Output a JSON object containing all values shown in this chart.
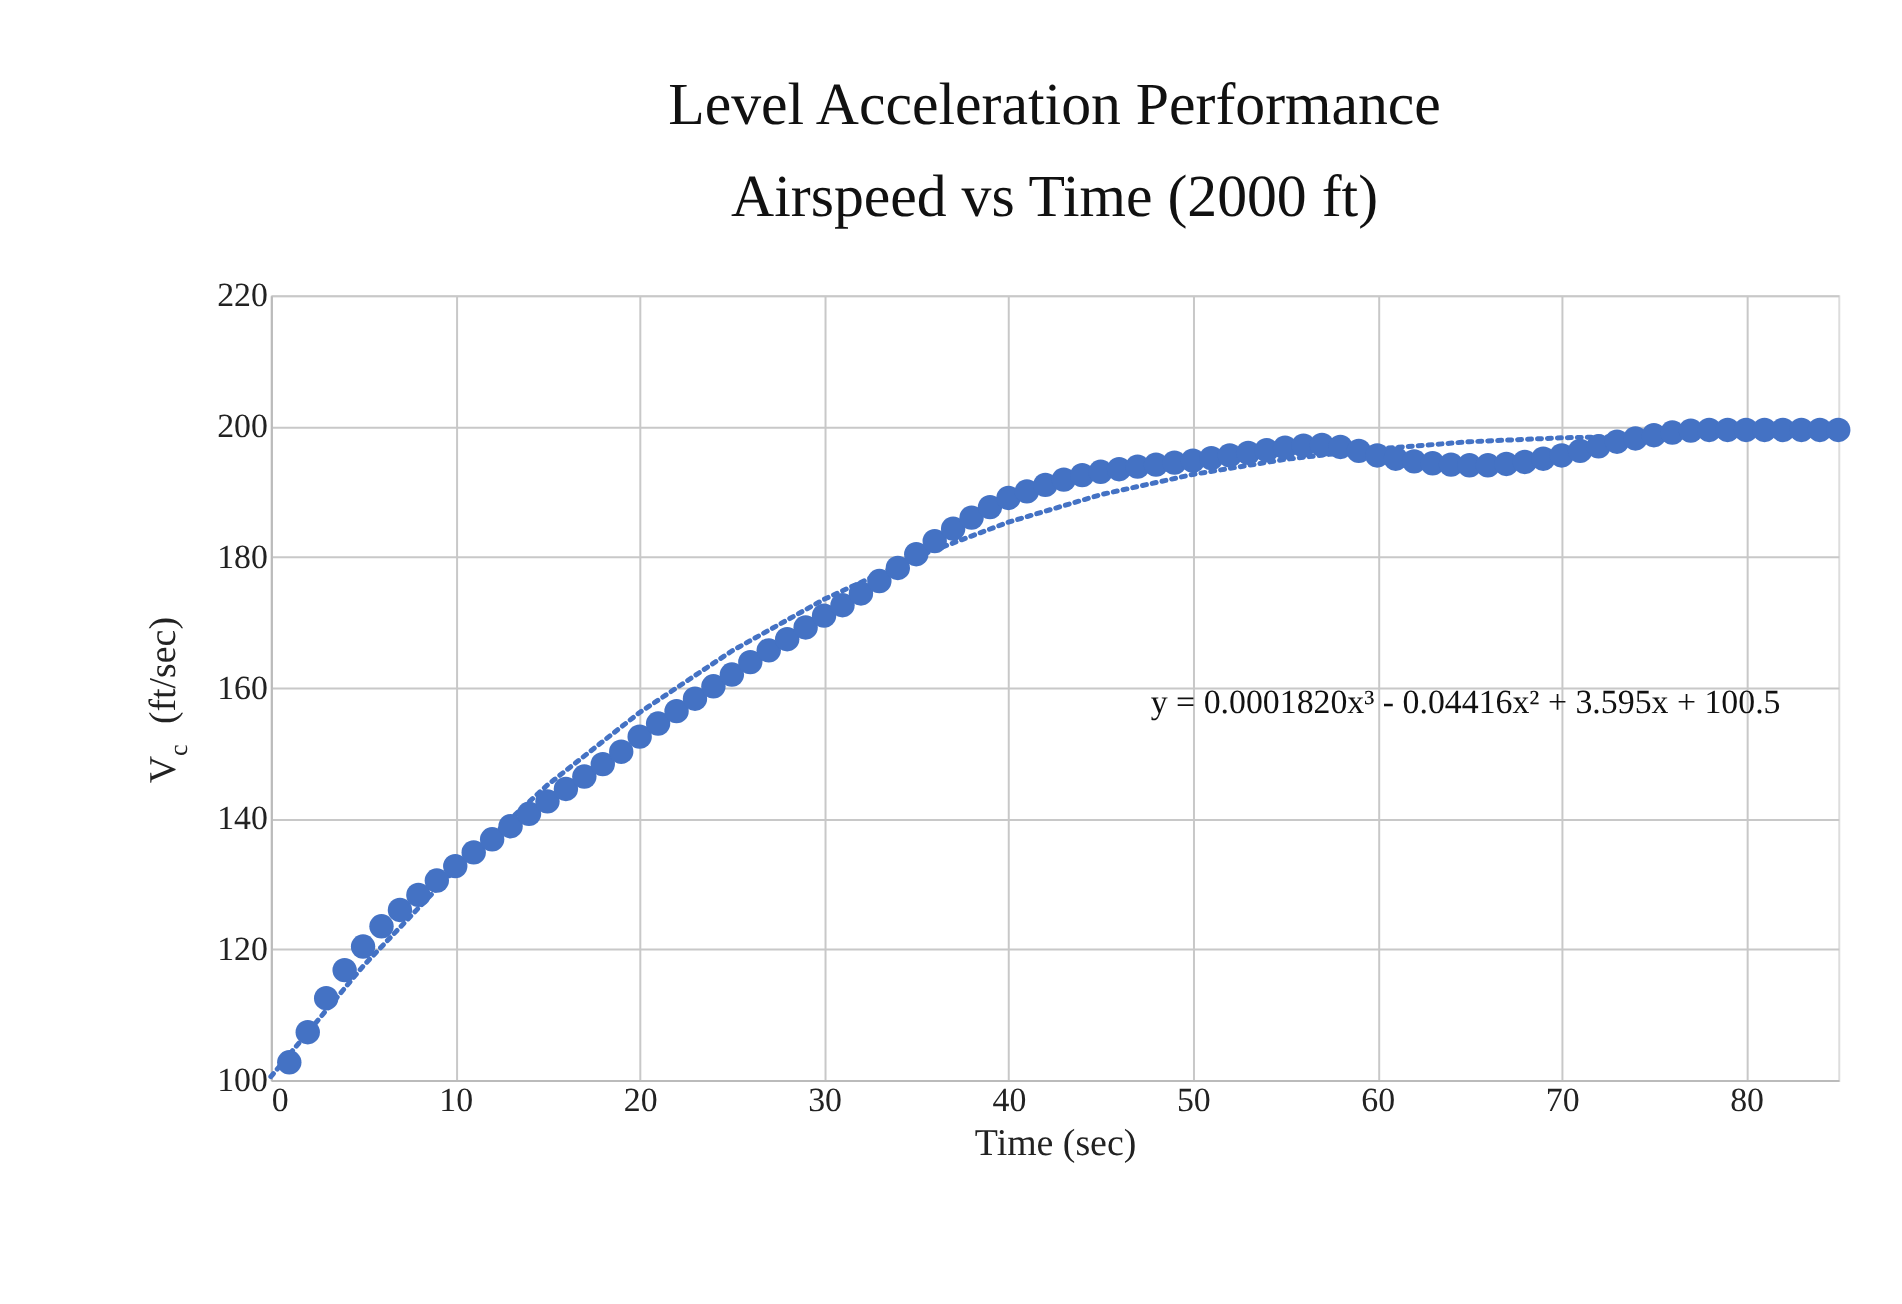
{
  "chart_data": {
    "type": "scatter",
    "title": [
      "Level Acceleration Performance",
      "Airspeed vs Time (2000 ft)"
    ],
    "xlabel": "Time (sec)",
    "ylabel": "V$_{c}$ (ft/sec)",
    "xlim": [
      0,
      85
    ],
    "xticks": [
      0,
      10,
      20,
      30,
      40,
      50,
      60,
      70,
      80
    ],
    "ylim": [
      100,
      220
    ],
    "yticks": [
      100,
      120,
      140,
      160,
      180,
      200,
      220
    ],
    "grid": true,
    "marker": "circle",
    "annotations": [
      "y = 0.0001820x³ - 0.04416x² + 3.595x + 100.5"
    ],
    "series": [
      {
        "color": "#4472c4",
        "x": [
          1,
          2,
          3,
          4,
          5,
          6,
          7,
          8,
          9,
          10,
          11,
          12,
          13,
          14,
          15,
          16,
          17,
          18,
          19,
          20,
          21,
          22,
          23,
          24,
          25,
          26,
          27,
          28,
          29,
          30,
          31,
          32,
          33,
          34,
          35,
          36,
          37,
          38,
          39,
          40,
          41,
          42,
          43,
          44,
          45,
          46,
          47,
          48,
          49,
          50,
          51,
          52,
          53,
          54,
          55,
          56,
          57,
          58,
          59,
          60,
          61,
          62,
          63,
          64,
          65,
          66,
          67,
          68,
          69,
          70,
          71,
          72,
          73,
          74,
          75,
          76,
          77,
          78,
          79,
          80,
          81,
          82,
          83,
          84,
          85
        ],
        "values": [
          102.7,
          107.3,
          112.5,
          116.8,
          120.4,
          123.5,
          126,
          128.3,
          130.5,
          132.7,
          134.8,
          136.8,
          138.8,
          140.7,
          142.6,
          144.5,
          146.4,
          148.3,
          150.2,
          152.5,
          154.5,
          156.4,
          158.3,
          160.2,
          162,
          163.9,
          165.7,
          167.4,
          169.2,
          171,
          172.6,
          174.4,
          176.3,
          178.3,
          180.4,
          182.4,
          184.3,
          186,
          187.6,
          189,
          190,
          191,
          191.8,
          192.5,
          193,
          193.4,
          193.8,
          194.1,
          194.4,
          194.7,
          195.1,
          195.5,
          195.9,
          196.3,
          196.7,
          197,
          197.1,
          196.8,
          196.2,
          195.5,
          195,
          194.6,
          194.3,
          194.1,
          194,
          194,
          194.2,
          194.5,
          195,
          195.5,
          196.2,
          196.9,
          197.6,
          198.1,
          198.6,
          199,
          199.3,
          199.4,
          199.4,
          199.4,
          199.4,
          199.4,
          199.4,
          199.4,
          199.4
        ]
      },
      {
        "type": "line",
        "color": "#4472c4",
        "line_style": "dotted",
        "marker": "none",
        "x": [
          0,
          5,
          10,
          15,
          20,
          25,
          30,
          35,
          40,
          45,
          50,
          55,
          60,
          65,
          70,
          75,
          80,
          85
        ],
        "values": [
          100.5,
          117.4,
          132.2,
          145.1,
          156.2,
          165.6,
          173.5,
          180.0,
          185.3,
          189.5,
          192.6,
          194.9,
          196.5,
          197.6,
          198.2,
          198.5,
          198.7,
          198.8
        ]
      }
    ]
  }
}
